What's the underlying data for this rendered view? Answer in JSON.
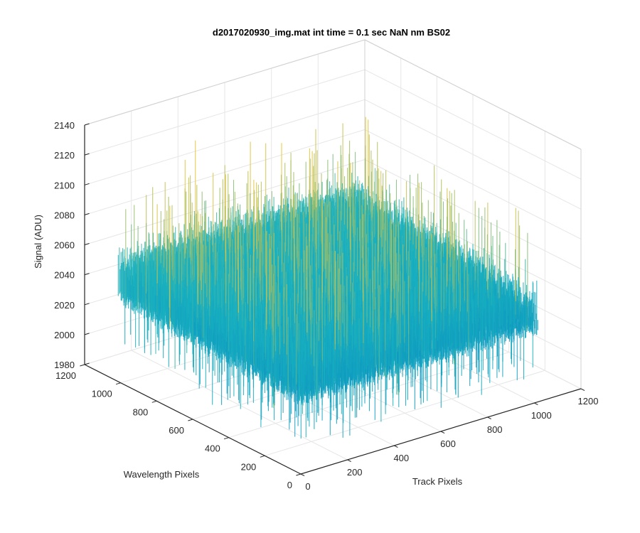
{
  "chart_data": {
    "type": "surface",
    "title": "d2017020930_img.mat int time = 0.1 sec  NaN nm BS02",
    "xlabel": "Track Pixels",
    "ylabel": "Wavelength Pixels",
    "zlabel": "Signal (ADU)",
    "xlim": [
      0,
      1200
    ],
    "ylim": [
      0,
      1200
    ],
    "zlim": [
      1980,
      2140
    ],
    "xticks": [
      0,
      200,
      400,
      600,
      800,
      1000,
      1200
    ],
    "yticks": [
      0,
      200,
      400,
      600,
      800,
      1000,
      1200
    ],
    "zticks": [
      1980,
      2000,
      2020,
      2040,
      2060,
      2080,
      2100,
      2120,
      2140
    ],
    "xtick_labels": [
      "0",
      "200",
      "400",
      "600",
      "800",
      "1000",
      "1200"
    ],
    "ytick_labels": [
      "0",
      "200",
      "400",
      "600",
      "800",
      "1000",
      "1200"
    ],
    "ztick_labels": [
      "1980",
      "2000",
      "2020",
      "2040",
      "2060",
      "2080",
      "2100",
      "2120",
      "2140"
    ],
    "data_extent": {
      "x": [
        0,
        1024
      ],
      "y": [
        0,
        1024
      ]
    },
    "baseline_signal": 2040,
    "noise_peak_signal": 2115,
    "noise_trough_signal": 2000,
    "grid": true,
    "colormap": "parula",
    "colors": {
      "low": "#0072bd",
      "mid": "#19b2c0",
      "high": "#e8c43a",
      "axis": "#262626",
      "grid": "#e6e6e6"
    }
  }
}
